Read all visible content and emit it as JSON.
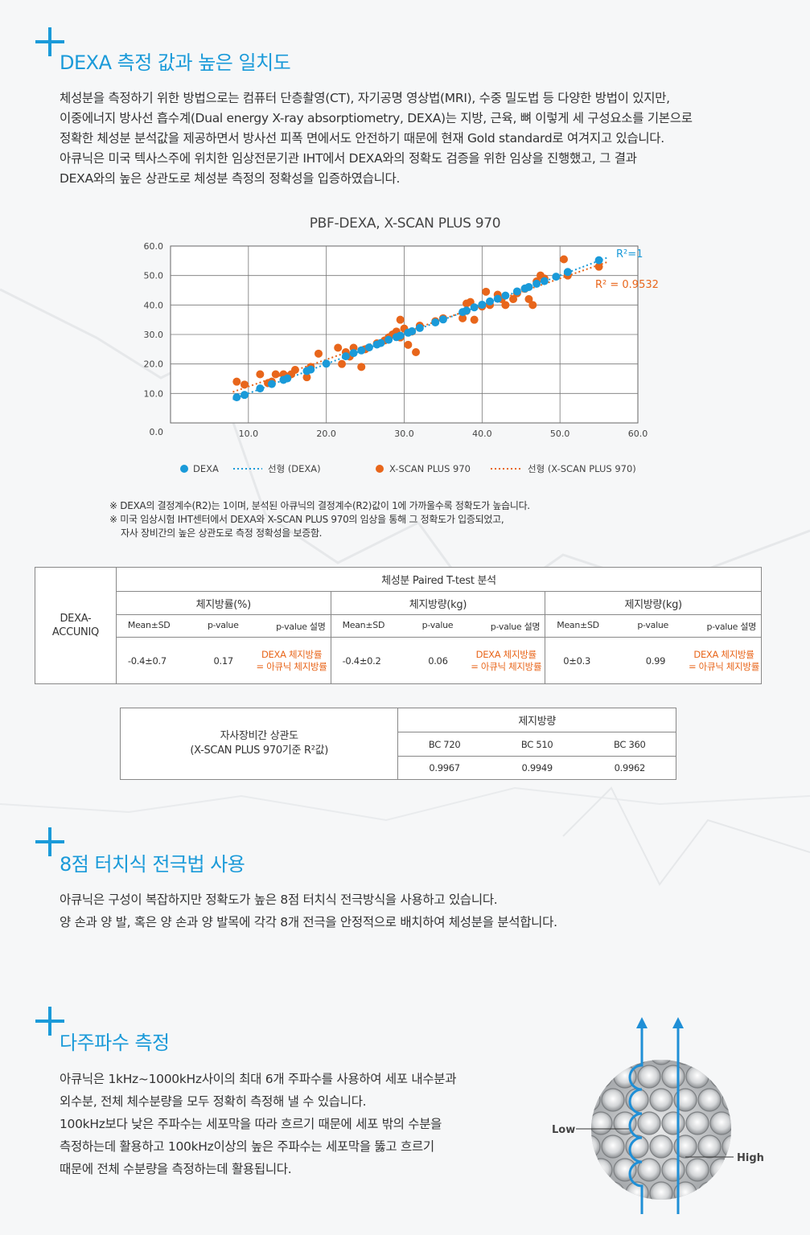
{
  "sections": {
    "dexa": {
      "title": "DEXA 측정 값과 높은 일치도",
      "paragraph": [
        "체성분을 측정하기 위한 방법으로는 컴퓨터 단층촬영(CT), 자기공명 영상법(MRI), 수중 밀도법 등 다양한 방법이 있지만,",
        "이중에너지 방사선 흡수계(Dual energy X-ray absorptiometry, DEXA)는 지방, 근육, 뼈 이렇게 세 구성요소를 기본으로",
        "정확한 체성분 분석값을 제공하면서 방사선 피폭 면에서도 안전하기 때문에 현재 Gold standard로 여겨지고 있습니다.",
        "아큐닉은 미국 텍사스주에 위치한 임상전문기관 IHT에서 DEXA와의 정확도 검증을 위한 임상을 진행했고, 그 결과",
        "DEXA와의 높은 상관도로 체성분 측정의 정확성을 입증하였습니다."
      ]
    },
    "electrode": {
      "title": "8점 터치식 전극법 사용",
      "paragraph": [
        "아큐닉은 구성이 복잡하지만 정확도가 높은 8점 터치식 전극방식을 사용하고 있습니다.",
        "양 손과 양 발, 혹은 양 손과 양 발목에 각각 8개 전극을 안정적으로 배치하여 체성분을 분석합니다."
      ]
    },
    "frequency": {
      "title": "다주파수 측정",
      "paragraph": [
        "아큐닉은 1kHz~1000kHz사이의 최대 6개 주파수를 사용하여 세포 내수분과",
        "외수분, 전체 체수분량을 모두 정확히 측정해 낼 수 있습니다.",
        "100kHz보다 낮은 주파수는 세포막을 따라 흐르기 때문에 세포 밖의 수분을",
        "측정하는데 활용하고 100kHz이상의 높은 주파수는 세포막을 뚫고 흐르기",
        "때문에 전체 수분량을 측정하는데 활용됩니다."
      ],
      "figure": {
        "low_label": "Low",
        "high_label": "High"
      }
    }
  },
  "chart_data": {
    "type": "scatter",
    "title": "PBF-DEXA, X-SCAN PLUS 970",
    "xlim": [
      0,
      60
    ],
    "ylim": [
      0,
      60
    ],
    "x_ticks": [
      "10.0",
      "20.0",
      "30.0",
      "40.0",
      "50.0",
      "60.0"
    ],
    "y_ticks": [
      "0.0",
      "10.0",
      "20.0",
      "30.0",
      "40.0",
      "50.0",
      "60.0"
    ],
    "grid": true,
    "legend_position": "bottom",
    "series": [
      {
        "name": "DEXA",
        "color": "#1a9ad9",
        "trend_name": "선형 (DEXA)",
        "annotation": "R²=1",
        "points": [
          [
            8.5,
            8.7
          ],
          [
            9.5,
            9.5
          ],
          [
            11.5,
            11.7
          ],
          [
            13.0,
            13.2
          ],
          [
            14.5,
            14.6
          ],
          [
            15.0,
            15.1
          ],
          [
            17.5,
            17.6
          ],
          [
            18.0,
            18.1
          ],
          [
            20.0,
            20.1
          ],
          [
            22.5,
            22.6
          ],
          [
            23.5,
            23.7
          ],
          [
            24.5,
            24.6
          ],
          [
            25.5,
            25.6
          ],
          [
            26.5,
            26.6
          ],
          [
            27.0,
            27.1
          ],
          [
            28.0,
            28.2
          ],
          [
            29.0,
            29.1
          ],
          [
            29.5,
            29.6
          ],
          [
            30.5,
            30.6
          ],
          [
            31.0,
            31.1
          ],
          [
            32.0,
            32.2
          ],
          [
            34.0,
            34.1
          ],
          [
            35.0,
            35.1
          ],
          [
            37.5,
            37.6
          ],
          [
            38.0,
            38.1
          ],
          [
            39.0,
            39.2
          ],
          [
            40.0,
            40.1
          ],
          [
            41.0,
            41.2
          ],
          [
            42.0,
            42.1
          ],
          [
            43.0,
            43.2
          ],
          [
            44.5,
            44.6
          ],
          [
            45.5,
            45.6
          ],
          [
            46.0,
            46.1
          ],
          [
            47.0,
            47.2
          ],
          [
            48.0,
            48.1
          ],
          [
            49.5,
            49.6
          ],
          [
            51.0,
            51.2
          ],
          [
            55.0,
            55.2
          ]
        ]
      },
      {
        "name": "X-SCAN PLUS 970",
        "color": "#e8661b",
        "trend_name": "선형 (X-SCAN PLUS 970)",
        "annotation": "R² = 0.9532",
        "points": [
          [
            8.5,
            14.0
          ],
          [
            9.5,
            13.0
          ],
          [
            11.5,
            16.5
          ],
          [
            12.5,
            13.5
          ],
          [
            13.0,
            14.0
          ],
          [
            13.5,
            16.5
          ],
          [
            14.5,
            16.5
          ],
          [
            15.0,
            15.5
          ],
          [
            15.5,
            16.5
          ],
          [
            16.0,
            18.0
          ],
          [
            17.5,
            15.5
          ],
          [
            18.0,
            19.0
          ],
          [
            19.0,
            23.5
          ],
          [
            21.5,
            25.5
          ],
          [
            22.0,
            20.0
          ],
          [
            22.5,
            24.0
          ],
          [
            23.0,
            22.5
          ],
          [
            23.5,
            25.5
          ],
          [
            24.5,
            19.0
          ],
          [
            25.0,
            25.0
          ],
          [
            26.5,
            27.0
          ],
          [
            27.5,
            28.0
          ],
          [
            28.0,
            29.0
          ],
          [
            28.5,
            30.0
          ],
          [
            29.0,
            31.0
          ],
          [
            29.5,
            35.0
          ],
          [
            29.5,
            29.0
          ],
          [
            30.0,
            32.0
          ],
          [
            30.5,
            26.5
          ],
          [
            31.0,
            31.0
          ],
          [
            31.5,
            24.0
          ],
          [
            32.0,
            33.0
          ],
          [
            34.0,
            34.5
          ],
          [
            35.0,
            35.5
          ],
          [
            37.5,
            35.5
          ],
          [
            38.0,
            38.0
          ],
          [
            38.0,
            40.5
          ],
          [
            38.5,
            41.0
          ],
          [
            39.0,
            35.0
          ],
          [
            40.0,
            39.5
          ],
          [
            40.5,
            44.5
          ],
          [
            41.0,
            40.0
          ],
          [
            42.0,
            43.5
          ],
          [
            42.5,
            42.0
          ],
          [
            43.0,
            40.0
          ],
          [
            44.0,
            42.0
          ],
          [
            44.5,
            44.0
          ],
          [
            45.5,
            45.5
          ],
          [
            46.0,
            42.0
          ],
          [
            46.5,
            40.0
          ],
          [
            47.0,
            48.0
          ],
          [
            47.5,
            50.0
          ],
          [
            48.0,
            49.0
          ],
          [
            50.5,
            55.5
          ],
          [
            51.0,
            50.0
          ],
          [
            55.0,
            53.0
          ]
        ]
      }
    ],
    "trendlines": {
      "DEXA": {
        "from": [
          8,
          8
        ],
        "to": [
          56,
          56
        ]
      },
      "X-SCAN PLUS 970": {
        "from": [
          8,
          10.5
        ],
        "to": [
          56,
          54.5
        ]
      }
    }
  },
  "notes": [
    "※ DEXA의 결정계수(R2)는 1이며, 분석된 아큐닉의 결정계수(R2)값이 1에 가까울수록 정확도가 높습니다.",
    "※ 미국 임상시험 IHT센터에서 DEXA와 X-SCAN PLUS 970의 임상을 통해 그 정확도가 입증되었고,",
    "    자사 장비간의 높은 상관도로 측정 정확성을 보증함."
  ],
  "ttest_table": {
    "row_label_line1": "DEXA-",
    "row_label_line2": "ACCUNIQ",
    "title": "체성분 Paired T-test 분석",
    "groups": [
      {
        "name": "체지방률(%)",
        "mean": "-0.4±0.7",
        "p": "0.17",
        "desc1": "DEXA 체지방률",
        "desc2": "= 아큐닉 체지방률"
      },
      {
        "name": "체지방량(kg)",
        "mean": "-0.4±0.2",
        "p": "0.06",
        "desc1": "DEXA 체지방률",
        "desc2": "= 아큐닉 체지방률"
      },
      {
        "name": "제지방량(kg)",
        "mean": "0±0.3",
        "p": "0.99",
        "desc1": "DEXA 체지방률",
        "desc2": "= 아큐닉 체지방률"
      }
    ],
    "col_mean": "Mean±SD",
    "col_p": "p-value",
    "col_desc": "p-value 설명"
  },
  "corr_table": {
    "label_line1": "자사장비간 상관도",
    "label_line2": "(X-SCAN PLUS 970기준 R²값)",
    "title": "제지방량",
    "models": [
      "BC 720",
      "BC 510",
      "BC 360"
    ],
    "values": [
      "0.9967",
      "0.9949",
      "0.9962"
    ]
  },
  "colors": {
    "accent": "#1a9ad9",
    "orange": "#e8661b"
  }
}
